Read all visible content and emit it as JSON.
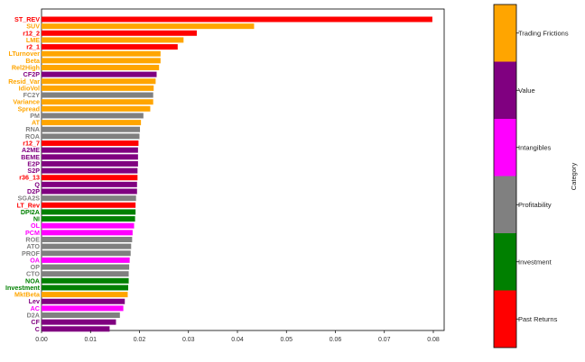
{
  "chart_data": {
    "type": "bar",
    "orientation": "horizontal",
    "xlim": [
      0,
      0.08
    ],
    "x_ticks": [
      "0.00",
      "0.01",
      "0.02",
      "0.03",
      "0.04",
      "0.05",
      "0.06",
      "0.07",
      "0.08"
    ],
    "grid": false,
    "categories": [
      "ST_REV",
      "SUV",
      "r12_2",
      "LME",
      "r2_1",
      "LTurnover",
      "Beta",
      "Rel2High",
      "CF2P",
      "Resid_Var",
      "IdioVol",
      "FC2Y",
      "Variance",
      "Spread",
      "PM",
      "AT",
      "RNA",
      "ROA",
      "r12_7",
      "A2ME",
      "BEME",
      "E2P",
      "S2P",
      "r36_13",
      "Q",
      "D2P",
      "SGA2S",
      "LT_Rev",
      "DPI2A",
      "NI",
      "OL",
      "PCM",
      "ROE",
      "ATO",
      "PROF",
      "OA",
      "OP",
      "CTO",
      "NOA",
      "Investment",
      "MktBeta",
      "Lev",
      "AC",
      "D2A",
      "CF",
      "C"
    ],
    "values": [
      0.0798,
      0.0434,
      0.0317,
      0.029,
      0.0278,
      0.0243,
      0.0243,
      0.024,
      0.0235,
      0.0233,
      0.0229,
      0.0228,
      0.0228,
      0.0222,
      0.0208,
      0.0203,
      0.0201,
      0.02,
      0.0198,
      0.0197,
      0.0197,
      0.0197,
      0.0196,
      0.0196,
      0.0195,
      0.0195,
      0.0193,
      0.0192,
      0.0192,
      0.0191,
      0.0189,
      0.0186,
      0.0185,
      0.0183,
      0.0182,
      0.018,
      0.0179,
      0.0178,
      0.0178,
      0.0177,
      0.0176,
      0.017,
      0.0167,
      0.016,
      0.0152,
      0.0139
    ],
    "bar_categories": [
      "Past Returns",
      "Trading Frictions",
      "Past Returns",
      "Trading Frictions",
      "Past Returns",
      "Trading Frictions",
      "Trading Frictions",
      "Trading Frictions",
      "Value",
      "Trading Frictions",
      "Trading Frictions",
      "Profitability",
      "Trading Frictions",
      "Trading Frictions",
      "Profitability",
      "Trading Frictions",
      "Profitability",
      "Profitability",
      "Past Returns",
      "Value",
      "Value",
      "Value",
      "Value",
      "Past Returns",
      "Value",
      "Value",
      "Profitability",
      "Past Returns",
      "Investment",
      "Investment",
      "Intangibles",
      "Intangibles",
      "Profitability",
      "Profitability",
      "Profitability",
      "Intangibles",
      "Profitability",
      "Profitability",
      "Investment",
      "Investment",
      "Trading Frictions",
      "Value",
      "Intangibles",
      "Profitability",
      "Value",
      "Value"
    ],
    "colorbar": {
      "title": "Category",
      "entries": [
        "Trading Frictions",
        "Value",
        "Intangibles",
        "Profitability",
        "Investment",
        "Past Returns"
      ]
    },
    "colors": {
      "Past Returns": "#ff0000",
      "Trading Frictions": "#ffa500",
      "Value": "#800080",
      "Intangibles": "#ff00ff",
      "Profitability": "#808080",
      "Investment": "#008000"
    }
  }
}
